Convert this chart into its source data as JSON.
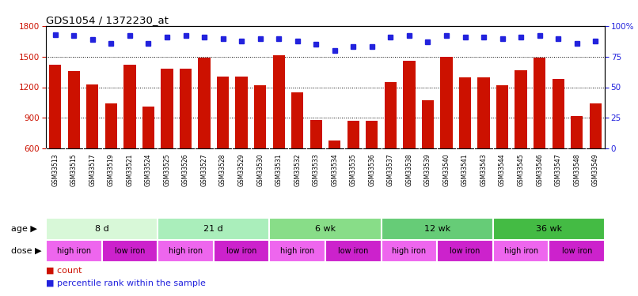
{
  "title": "GDS1054 / 1372230_at",
  "samples": [
    "GSM33513",
    "GSM33515",
    "GSM33517",
    "GSM33519",
    "GSM33521",
    "GSM33524",
    "GSM33525",
    "GSM33526",
    "GSM33527",
    "GSM33528",
    "GSM33529",
    "GSM33530",
    "GSM33531",
    "GSM33532",
    "GSM33533",
    "GSM33534",
    "GSM33535",
    "GSM33536",
    "GSM33537",
    "GSM33538",
    "GSM33539",
    "GSM33540",
    "GSM33541",
    "GSM33543",
    "GSM33544",
    "GSM33545",
    "GSM33546",
    "GSM33547",
    "GSM33548",
    "GSM33549"
  ],
  "counts": [
    1420,
    1360,
    1230,
    1040,
    1420,
    1010,
    1380,
    1380,
    1490,
    1305,
    1305,
    1220,
    1510,
    1150,
    880,
    680,
    870,
    870,
    1250,
    1460,
    1070,
    1500,
    1300,
    1300,
    1220,
    1370,
    1490,
    1280,
    920,
    1040
  ],
  "percentiles": [
    93,
    92,
    89,
    86,
    92,
    86,
    91,
    92,
    91,
    90,
    88,
    90,
    90,
    88,
    85,
    80,
    83,
    83,
    91,
    92,
    87,
    92,
    91,
    91,
    90,
    91,
    92,
    90,
    86,
    88
  ],
  "ylim_left": [
    600,
    1800
  ],
  "yticks_left": [
    600,
    900,
    1200,
    1500,
    1800
  ],
  "yticks_right": [
    0,
    25,
    50,
    75,
    100
  ],
  "bar_color": "#cc1100",
  "dot_color": "#2222dd",
  "age_groups": [
    {
      "label": "8 d",
      "start": 0,
      "end": 6,
      "color": "#d8f8d8"
    },
    {
      "label": "21 d",
      "start": 6,
      "end": 12,
      "color": "#aaeebb"
    },
    {
      "label": "6 wk",
      "start": 12,
      "end": 18,
      "color": "#88dd88"
    },
    {
      "label": "12 wk",
      "start": 18,
      "end": 24,
      "color": "#66cc77"
    },
    {
      "label": "36 wk",
      "start": 24,
      "end": 30,
      "color": "#44bb44"
    }
  ],
  "dose_groups": [
    {
      "label": "high iron",
      "start": 0,
      "end": 3,
      "type": "high"
    },
    {
      "label": "low iron",
      "start": 3,
      "end": 6,
      "type": "low"
    },
    {
      "label": "high iron",
      "start": 6,
      "end": 9,
      "type": "high"
    },
    {
      "label": "low iron",
      "start": 9,
      "end": 12,
      "type": "low"
    },
    {
      "label": "high iron",
      "start": 12,
      "end": 15,
      "type": "high"
    },
    {
      "label": "low iron",
      "start": 15,
      "end": 18,
      "type": "low"
    },
    {
      "label": "high iron",
      "start": 18,
      "end": 21,
      "type": "high"
    },
    {
      "label": "low iron",
      "start": 21,
      "end": 24,
      "type": "low"
    },
    {
      "label": "high iron",
      "start": 24,
      "end": 27,
      "type": "high"
    },
    {
      "label": "low iron",
      "start": 27,
      "end": 30,
      "type": "low"
    }
  ],
  "dose_high_color": "#ee66ee",
  "dose_low_color": "#cc22cc",
  "age_label": "age",
  "dose_label": "dose",
  "legend_count_label": "count",
  "legend_pct_label": "percentile rank within the sample",
  "bar_color_legend": "#cc1100",
  "dot_color_legend": "#2222dd",
  "tick_bg_color": "#bbbbbb",
  "axis_color_left": "#cc1100",
  "axis_color_right": "#2222dd",
  "background_color": "#ffffff"
}
